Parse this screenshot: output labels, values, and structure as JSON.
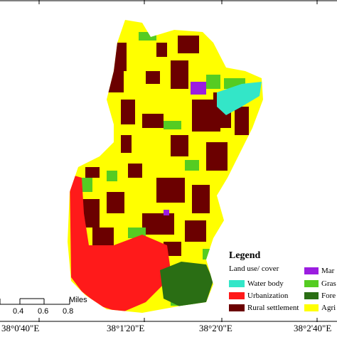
{
  "map": {
    "longitude_labels": [
      "38°0'40\"E",
      "38°1'20\"E",
      "38°2'0\"E",
      "38°2'40\"E"
    ],
    "scale_bar": {
      "tick_labels": [
        "0.4",
        "0.6",
        "0.8"
      ],
      "unit": "Miles"
    },
    "legend": {
      "title": "Legend",
      "subtitle": "Land use/ cover",
      "classes": [
        {
          "label": "Water body",
          "color": "#33e6c8"
        },
        {
          "label": "Urbanization",
          "color": "#ff1a1a"
        },
        {
          "label": "Rural settlement",
          "color": "#6b0000"
        },
        {
          "label": "Mar",
          "color": "#9b1de0"
        },
        {
          "label": "Gras",
          "color": "#55cc22"
        },
        {
          "label": "Fore",
          "color": "#2a6e14"
        },
        {
          "label": "Agri",
          "color": "#ffff00"
        }
      ]
    }
  }
}
